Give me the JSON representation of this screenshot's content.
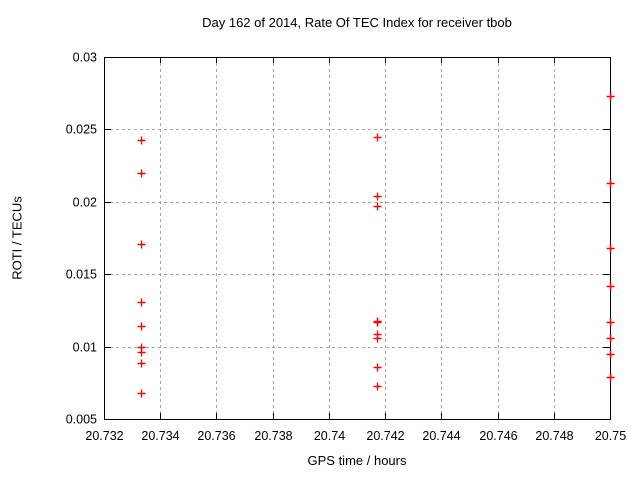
{
  "page": {
    "background": "#ffffff"
  },
  "chart_data": {
    "type": "scatter",
    "title": "Day 162 of 2014, Rate Of TEC Index for receiver tbob",
    "xlabel": "GPS time / hours",
    "ylabel": "ROTI / TECUs",
    "xlim": [
      20.732,
      20.75
    ],
    "ylim": [
      0.005,
      0.03
    ],
    "xticks": [
      20.732,
      20.734,
      20.736,
      20.738,
      20.74,
      20.742,
      20.744,
      20.746,
      20.748,
      20.75
    ],
    "xtick_labels": [
      "20.732",
      "20.734",
      "20.736",
      "20.738",
      "20.74",
      "20.742",
      "20.744",
      "20.746",
      "20.748",
      "20.75"
    ],
    "yticks": [
      0.005,
      0.01,
      0.015,
      0.02,
      0.025,
      0.03
    ],
    "ytick_labels": [
      "0.005",
      "0.01",
      "0.015",
      "0.02",
      "0.025",
      "0.03"
    ],
    "grid": true,
    "grid_style": "dashed",
    "legend": "none",
    "marker": "plus",
    "marker_color": "#ff0000",
    "grid_color": "#a6a6a6",
    "axis_color": "#000000",
    "series": [
      {
        "x": [
          20.7333,
          20.7333,
          20.7333,
          20.7333,
          20.7333,
          20.7333,
          20.7333,
          20.7333,
          20.7333,
          20.7417,
          20.7417,
          20.7417,
          20.7417,
          20.7417,
          20.7417,
          20.7417,
          20.7417,
          20.7417,
          20.75,
          20.75,
          20.75,
          20.75,
          20.75,
          20.75,
          20.75,
          20.75
        ],
        "y": [
          0.0243,
          0.022,
          0.0171,
          0.0131,
          0.0114,
          0.01,
          0.0096,
          0.0089,
          0.0068,
          0.0245,
          0.0204,
          0.0197,
          0.0118,
          0.0117,
          0.0109,
          0.0106,
          0.0086,
          0.0073,
          0.0273,
          0.0213,
          0.0168,
          0.0142,
          0.0117,
          0.0106,
          0.0095,
          0.0079
        ]
      }
    ]
  }
}
